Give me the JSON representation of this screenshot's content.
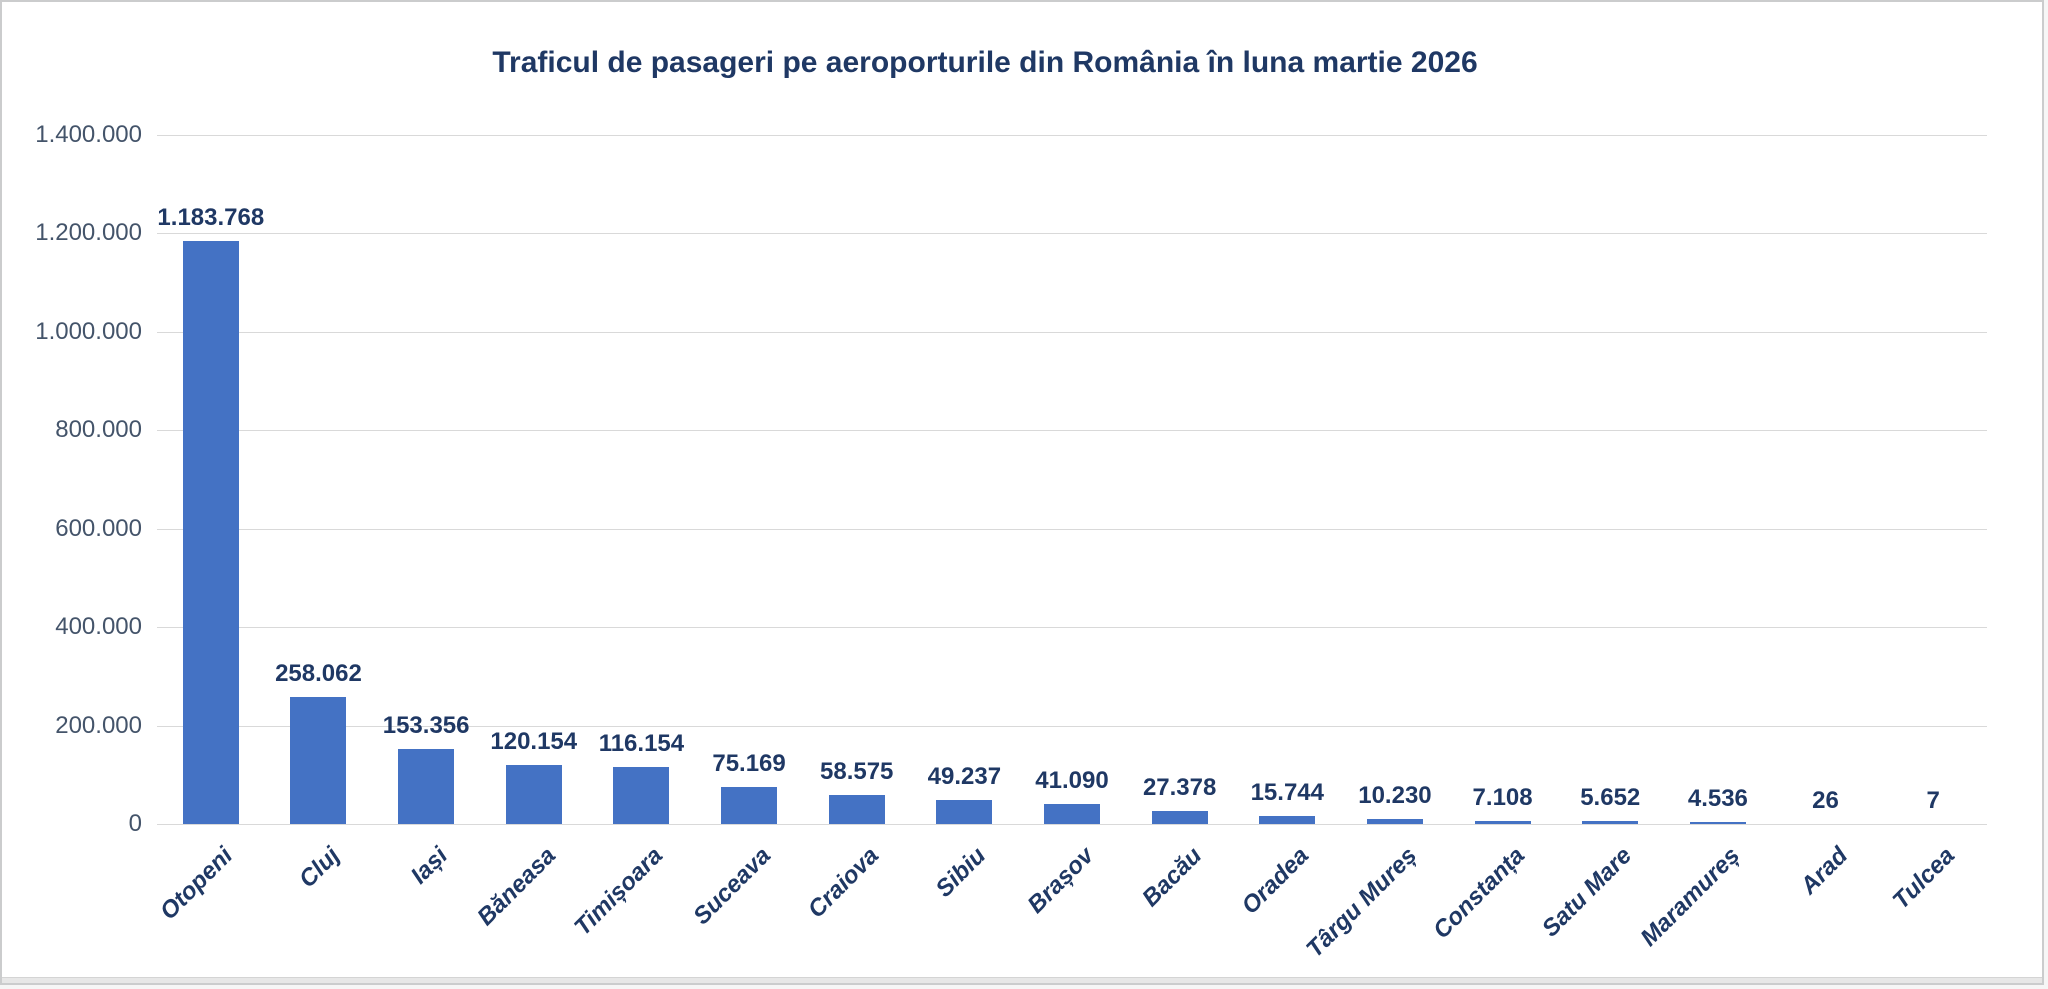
{
  "frame": {
    "background": "#ffffff",
    "border_color": "#cbcccd",
    "bottom_strip_color": "#e7e7e7"
  },
  "chart_data": {
    "type": "bar",
    "title": "Traficul de pasageri pe aeroporturile din România în luna martie 2026",
    "xlabel": "",
    "ylabel": "",
    "legend": "none",
    "grid": true,
    "ylim": [
      0,
      1400000
    ],
    "y_ticks": [
      {
        "value": 1400000,
        "label": "1.400.000"
      },
      {
        "value": 1200000,
        "label": "1.200.000"
      },
      {
        "value": 1000000,
        "label": "1.000.000"
      },
      {
        "value": 800000,
        "label": "800.000"
      },
      {
        "value": 600000,
        "label": "600.000"
      },
      {
        "value": 400000,
        "label": "400.000"
      },
      {
        "value": 200000,
        "label": "200.000"
      },
      {
        "value": 0,
        "label": "0"
      }
    ],
    "categories": [
      "Otopeni",
      "Cluj",
      "Iași",
      "Băneasa",
      "Timișoara",
      "Suceava",
      "Craiova",
      "Sibiu",
      "Brașov",
      "Bacău",
      "Oradea",
      "Târgu Mureș",
      "Constanța",
      "Satu Mare",
      "Maramureș",
      "Arad",
      "Tulcea"
    ],
    "values": [
      1183768,
      258062,
      153356,
      120154,
      116154,
      75169,
      58575,
      49237,
      41090,
      27378,
      15744,
      10230,
      7108,
      5652,
      4536,
      26,
      7
    ],
    "data_labels": [
      "1.183.768",
      "258.062",
      "153.356",
      "120.154",
      "116.154",
      "75.169",
      "58.575",
      "49.237",
      "41.090",
      "27.378",
      "15.744",
      "10.230",
      "7.108",
      "5.652",
      "4.536",
      "26",
      "7"
    ],
    "colors": {
      "bar": "#4472C4",
      "title": "#1F3864",
      "data_label": "#1F3864",
      "x_tick_label": "#1F3864",
      "y_tick_label": "#44546A",
      "gridline": "#D9D9D9"
    }
  }
}
